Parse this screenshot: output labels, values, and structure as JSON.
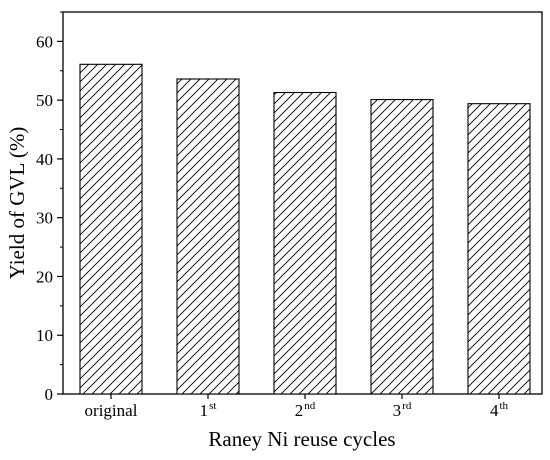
{
  "chart_data": {
    "type": "bar",
    "title": "",
    "xlabel": "Raney Ni reuse cycles",
    "ylabel": "Yield of GVL (%)",
    "categories": [
      {
        "base": "original",
        "sup": ""
      },
      {
        "base": "1",
        "sup": "st"
      },
      {
        "base": "2",
        "sup": "nd"
      },
      {
        "base": "3",
        "sup": "rd"
      },
      {
        "base": "4",
        "sup": "th"
      }
    ],
    "values": [
      56.1,
      53.6,
      51.3,
      50.1,
      49.4
    ],
    "ylim": [
      0,
      65
    ],
    "yticks": [
      0,
      10,
      20,
      30,
      40,
      50,
      60
    ],
    "grid": false,
    "bar_fill": "hatched",
    "colors": {
      "bar_edge": "#000000",
      "hatch": "#000000",
      "axis": "#000000",
      "background": "#ffffff"
    }
  }
}
